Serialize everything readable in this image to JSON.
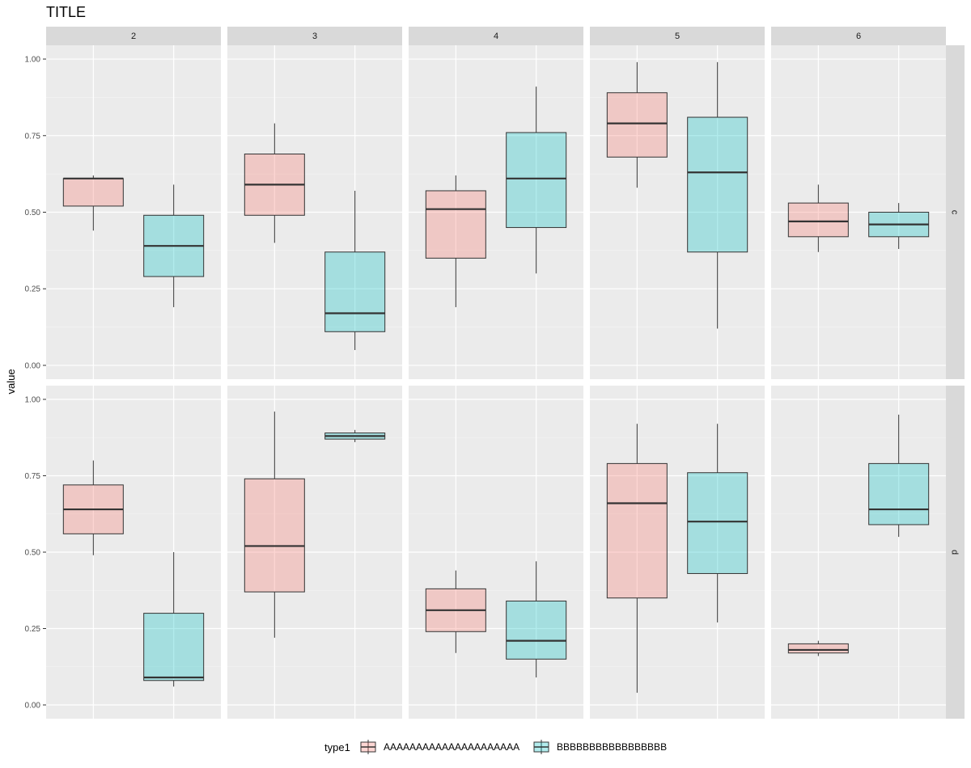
{
  "chart_data": {
    "type": "boxplot",
    "title": "TITLE",
    "xlabel": "",
    "ylabel": "value",
    "ylim": [
      0,
      1
    ],
    "yticks": [
      0.0,
      0.25,
      0.5,
      0.75,
      1.0
    ],
    "ytick_labels": [
      "0.00",
      "0.25",
      "0.50",
      "0.75",
      "1.00"
    ],
    "facet_columns": [
      "2",
      "3",
      "4",
      "5",
      "6"
    ],
    "facet_rows": [
      "c",
      "d"
    ],
    "legend": {
      "title": "type1",
      "position": "bottom",
      "entries": [
        {
          "name": "AAAAAAAAAAAAAAAAAAAAA",
          "color": "#F8766D"
        },
        {
          "name": "BBBBBBBBBBBBBBBBB",
          "color": "#00BFC4"
        }
      ]
    },
    "series_names": [
      "AAAAAAAAAAAAAAAAAAAAA",
      "BBBBBBBBBBBBBBBBB"
    ],
    "panels": [
      {
        "row": "c",
        "col": "2",
        "boxes": [
          {
            "series": "AAAAAAAAAAAAAAAAAAAAA",
            "min": 0.44,
            "q1": 0.52,
            "median": 0.61,
            "q3": 0.61,
            "max": 0.62
          },
          {
            "series": "BBBBBBBBBBBBBBBBB",
            "min": 0.19,
            "q1": 0.29,
            "median": 0.39,
            "q3": 0.49,
            "max": 0.59
          }
        ]
      },
      {
        "row": "c",
        "col": "3",
        "boxes": [
          {
            "series": "AAAAAAAAAAAAAAAAAAAAA",
            "min": 0.4,
            "q1": 0.49,
            "median": 0.59,
            "q3": 0.69,
            "max": 0.79
          },
          {
            "series": "BBBBBBBBBBBBBBBBB",
            "min": 0.05,
            "q1": 0.11,
            "median": 0.17,
            "q3": 0.37,
            "max": 0.57
          }
        ]
      },
      {
        "row": "c",
        "col": "4",
        "boxes": [
          {
            "series": "AAAAAAAAAAAAAAAAAAAAA",
            "min": 0.19,
            "q1": 0.35,
            "median": 0.51,
            "q3": 0.57,
            "max": 0.62
          },
          {
            "series": "BBBBBBBBBBBBBBBBB",
            "min": 0.3,
            "q1": 0.45,
            "median": 0.61,
            "q3": 0.76,
            "max": 0.91
          }
        ]
      },
      {
        "row": "c",
        "col": "5",
        "boxes": [
          {
            "series": "AAAAAAAAAAAAAAAAAAAAA",
            "min": 0.58,
            "q1": 0.68,
            "median": 0.79,
            "q3": 0.89,
            "max": 0.99
          },
          {
            "series": "BBBBBBBBBBBBBBBBB",
            "min": 0.12,
            "q1": 0.37,
            "median": 0.63,
            "q3": 0.81,
            "max": 0.99
          }
        ]
      },
      {
        "row": "c",
        "col": "6",
        "boxes": [
          {
            "series": "AAAAAAAAAAAAAAAAAAAAA",
            "min": 0.37,
            "q1": 0.42,
            "median": 0.47,
            "q3": 0.53,
            "max": 0.59
          },
          {
            "series": "BBBBBBBBBBBBBBBBB",
            "min": 0.38,
            "q1": 0.42,
            "median": 0.46,
            "q3": 0.5,
            "max": 0.53
          }
        ]
      },
      {
        "row": "d",
        "col": "2",
        "boxes": [
          {
            "series": "AAAAAAAAAAAAAAAAAAAAA",
            "min": 0.49,
            "q1": 0.56,
            "median": 0.64,
            "q3": 0.72,
            "max": 0.8
          },
          {
            "series": "BBBBBBBBBBBBBBBBB",
            "min": 0.06,
            "q1": 0.08,
            "median": 0.09,
            "q3": 0.3,
            "max": 0.5
          }
        ]
      },
      {
        "row": "d",
        "col": "3",
        "boxes": [
          {
            "series": "AAAAAAAAAAAAAAAAAAAAA",
            "min": 0.22,
            "q1": 0.37,
            "median": 0.52,
            "q3": 0.74,
            "max": 0.96
          },
          {
            "series": "BBBBBBBBBBBBBBBBB",
            "min": 0.86,
            "q1": 0.87,
            "median": 0.88,
            "q3": 0.89,
            "max": 0.9
          }
        ]
      },
      {
        "row": "d",
        "col": "4",
        "boxes": [
          {
            "series": "AAAAAAAAAAAAAAAAAAAAA",
            "min": 0.17,
            "q1": 0.24,
            "median": 0.31,
            "q3": 0.38,
            "max": 0.44
          },
          {
            "series": "BBBBBBBBBBBBBBBBB",
            "min": 0.09,
            "q1": 0.15,
            "median": 0.21,
            "q3": 0.34,
            "max": 0.47
          }
        ]
      },
      {
        "row": "d",
        "col": "5",
        "boxes": [
          {
            "series": "AAAAAAAAAAAAAAAAAAAAA",
            "min": 0.04,
            "q1": 0.35,
            "median": 0.66,
            "q3": 0.79,
            "max": 0.92
          },
          {
            "series": "BBBBBBBBBBBBBBBBB",
            "min": 0.27,
            "q1": 0.43,
            "median": 0.6,
            "q3": 0.76,
            "max": 0.92
          }
        ]
      },
      {
        "row": "d",
        "col": "6",
        "boxes": [
          {
            "series": "AAAAAAAAAAAAAAAAAAAAA",
            "min": 0.16,
            "q1": 0.17,
            "median": 0.18,
            "q3": 0.2,
            "max": 0.21
          },
          {
            "series": "BBBBBBBBBBBBBBBBB",
            "min": 0.55,
            "q1": 0.59,
            "median": 0.64,
            "q3": 0.79,
            "max": 0.95
          }
        ]
      }
    ]
  }
}
